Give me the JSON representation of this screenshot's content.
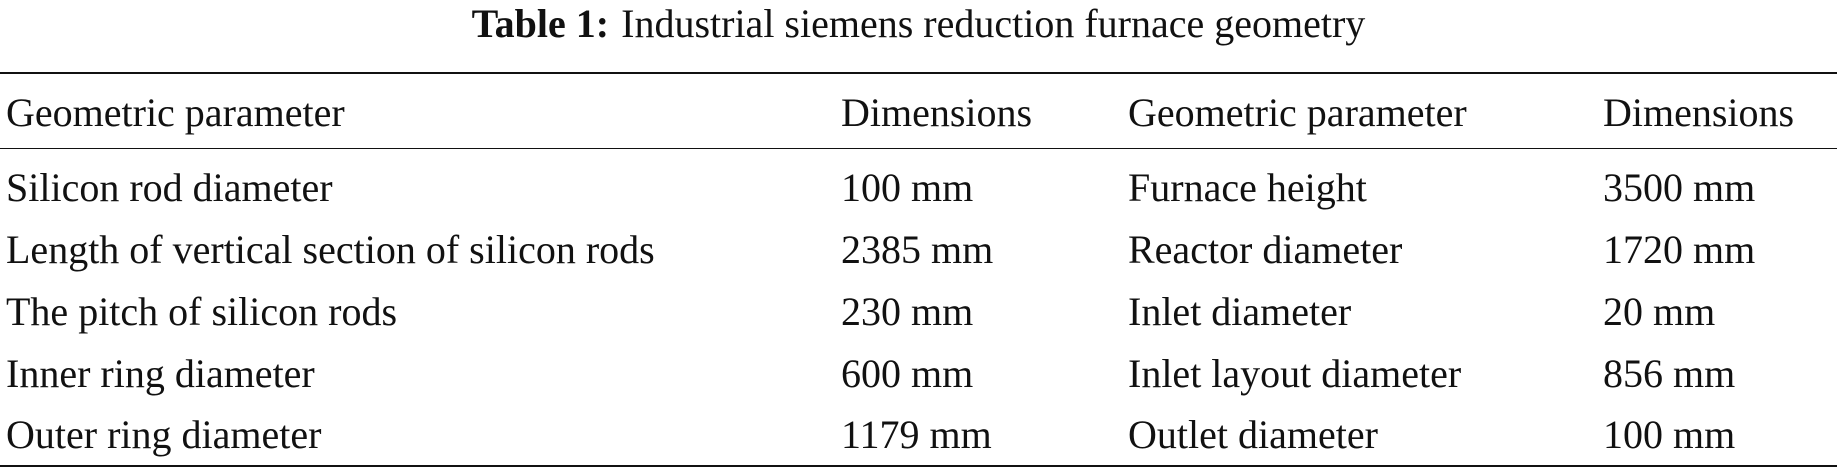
{
  "caption": {
    "label": "Table 1:",
    "text": "Industrial siemens reduction furnace geometry"
  },
  "table": {
    "header": [
      "Geometric parameter",
      "Dimensions",
      "Geometric parameter",
      "Dimensions"
    ],
    "rows": [
      [
        "Silicon rod diameter",
        "100 mm",
        "Furnace height",
        "3500 mm"
      ],
      [
        "Length of vertical section of silicon rods",
        "2385 mm",
        "Reactor diameter",
        "1720 mm"
      ],
      [
        "The pitch of silicon rods",
        "230 mm",
        "Inlet diameter",
        "20 mm"
      ],
      [
        "Inner ring diameter",
        "600 mm",
        "Inlet layout diameter",
        "856 mm"
      ],
      [
        "Outer ring diameter",
        "1179 mm",
        "Outlet diameter",
        "100 mm"
      ]
    ]
  }
}
